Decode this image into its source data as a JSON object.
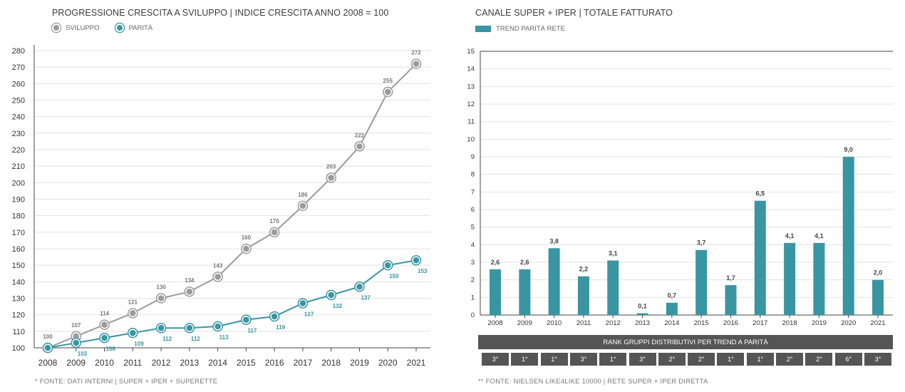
{
  "colors": {
    "sviluppo": "#9b9b9b",
    "parita": "#3a95a3",
    "rank_bg": "#555555",
    "grid": "#e2e2e2",
    "axis": "#444444"
  },
  "left": {
    "title": "PROGRESSIONE CRESCITA A SVILUPPO | INDICE CRESCITA ANNO 2008 = 100",
    "legend": [
      "SVILUPPO",
      "PARITÀ"
    ],
    "footer": "* FONTE: DATI INTERNI | SUPER + IPER + SUPERETTE"
  },
  "right": {
    "title": "CANALE SUPER + IPER | TOTALE FATTURATO",
    "legend": [
      "TREND PARITÀ RETE"
    ],
    "rank_title": "RANK GRUPPI DISTRIBUTIVI PER TREND A PARITÀ",
    "ranks": [
      "3°",
      "1°",
      "1°",
      "3°",
      "1°",
      "3°",
      "2°",
      "2°",
      "1°",
      "1°",
      "2°",
      "2°",
      "6°",
      "3°"
    ],
    "footer": "** FONTE: NIELSEN LIKE4LIKE  10000 | RETE SUPER + IPER DIRETTA"
  },
  "chart_data": [
    {
      "type": "line",
      "title": "PROGRESSIONE CRESCITA A SVILUPPO | INDICE CRESCITA ANNO 2008 = 100",
      "x": [
        "2008",
        "2009",
        "2010",
        "2011",
        "2012",
        "2013",
        "2014",
        "2015",
        "2016",
        "2017",
        "2018",
        "2019",
        "2020",
        "2021"
      ],
      "y_ticks": [
        100,
        110,
        120,
        130,
        140,
        150,
        160,
        170,
        180,
        190,
        200,
        210,
        220,
        230,
        240,
        250,
        260,
        270,
        280
      ],
      "ylim": [
        100,
        280
      ],
      "grid": true,
      "legend_position": "top-left",
      "series": [
        {
          "name": "SVILUPPO",
          "values": [
            100,
            107,
            114,
            121,
            130,
            134,
            143,
            160,
            170,
            186,
            203,
            222,
            255,
            272
          ],
          "labels": [
            "100",
            "107",
            "114",
            "121",
            "130",
            "134",
            "143",
            "160",
            "170",
            "186",
            "203",
            "222",
            "255",
            "272"
          ]
        },
        {
          "name": "PARITÀ",
          "values": [
            100,
            103,
            106,
            109,
            112,
            112,
            113,
            117,
            119,
            127,
            132,
            137,
            150,
            153
          ],
          "labels": [
            "",
            "103",
            "106",
            "109",
            "112",
            "112",
            "113",
            "117",
            "119",
            "127",
            "132",
            "137",
            "150",
            "153"
          ]
        }
      ]
    },
    {
      "type": "bar",
      "title": "CANALE SUPER + IPER | TOTALE FATTURATO",
      "categories": [
        "2008",
        "2009",
        "2010",
        "2011",
        "2012",
        "2013",
        "2014",
        "2015",
        "2016",
        "2017",
        "2018",
        "2019",
        "2020",
        "2021"
      ],
      "series": [
        {
          "name": "TREND PARITÀ RETE",
          "values": [
            2.6,
            2.6,
            3.8,
            2.2,
            3.1,
            0.1,
            0.7,
            3.7,
            1.7,
            6.5,
            4.1,
            4.1,
            9.0,
            2.0
          ],
          "labels": [
            "2,6",
            "2,6",
            "3,8",
            "2,2",
            "3,1",
            "0,1",
            "0,7",
            "3,7",
            "1,7",
            "6,5",
            "4,1",
            "4,1",
            "9,0",
            "2,0"
          ]
        }
      ],
      "y_ticks": [
        0,
        1,
        2,
        3,
        4,
        5,
        6,
        7,
        8,
        9,
        10,
        11,
        12,
        13,
        14,
        15
      ],
      "ylim": [
        0,
        15
      ],
      "grid": true,
      "legend_position": "top-left"
    }
  ]
}
